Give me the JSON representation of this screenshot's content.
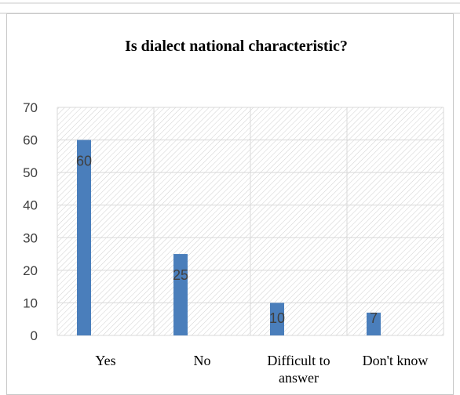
{
  "chart_data": {
    "type": "bar",
    "title": "Is dialect national characteristic?",
    "categories": [
      [
        "Yes"
      ],
      [
        "No"
      ],
      [
        "Difficult to",
        "answer"
      ],
      [
        "Don't know"
      ]
    ],
    "values": [
      60,
      25,
      10,
      7
    ],
    "data_labels": [
      "60",
      "25",
      "10",
      "7"
    ],
    "ylim": [
      0,
      70
    ],
    "yticks": [
      "0",
      "10",
      "20",
      "30",
      "40",
      "50",
      "60",
      "70"
    ],
    "xlabel": "",
    "ylabel": "",
    "grid": true,
    "plot_background": "hatched",
    "colors": {
      "bar": "#4a7ebb",
      "grid": "#d9d9d9",
      "hatch": "#d0d0d0"
    }
  }
}
